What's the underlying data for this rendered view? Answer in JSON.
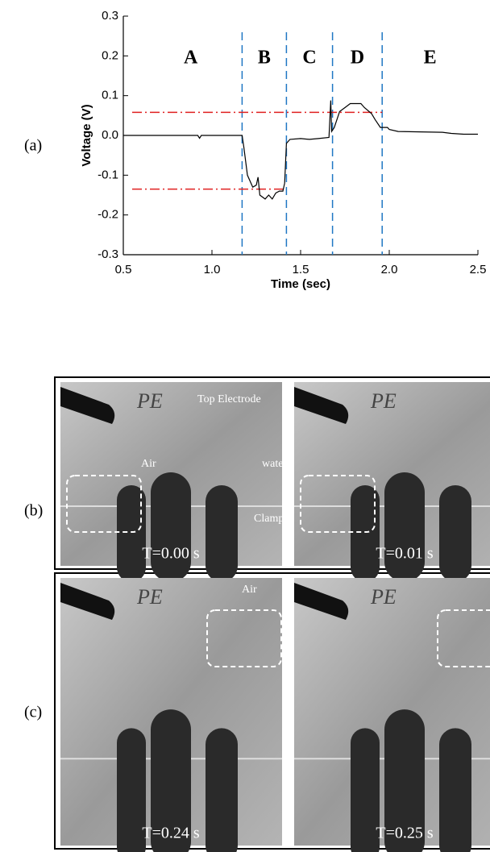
{
  "chart_data": {
    "type": "line",
    "xlabel": "Time (sec)",
    "ylabel": "Voltage (V)",
    "xlim": [
      0.5,
      2.5
    ],
    "ylim": [
      -0.3,
      0.3
    ],
    "xticks": [
      0.5,
      {
        "value": 1,
        "label": "1.0"
      },
      1.5,
      {
        "value": 2,
        "label": "2.0"
      },
      2.5
    ],
    "yticks": [
      -0.3,
      -0.2,
      -0.1,
      {
        "value": 0,
        "label": "0.0"
      },
      0.1,
      0.2,
      0.3
    ],
    "color": "#000000",
    "x": [
      0.5,
      0.92,
      0.93,
      0.94,
      1.17,
      1.18,
      1.2,
      1.23,
      1.25,
      1.26,
      1.27,
      1.3,
      1.32,
      1.34,
      1.36,
      1.38,
      1.4,
      1.41,
      1.42,
      1.44,
      1.5,
      1.55,
      1.6,
      1.66,
      1.67,
      1.675,
      1.69,
      1.72,
      1.75,
      1.78,
      1.84,
      1.86,
      1.9,
      1.92,
      1.95,
      1.99,
      2.0,
      2.05,
      2.3,
      2.35,
      2.42,
      2.5
    ],
    "values": [
      0,
      0,
      -0.007,
      0,
      0,
      -0.03,
      -0.1,
      -0.13,
      -0.125,
      -0.105,
      -0.15,
      -0.16,
      -0.15,
      -0.16,
      -0.145,
      -0.14,
      -0.14,
      -0.12,
      -0.02,
      -0.01,
      -0.008,
      -0.01,
      -0.008,
      -0.005,
      0.088,
      0.01,
      0.02,
      0.06,
      0.07,
      0.08,
      0.08,
      0.07,
      0.055,
      0.04,
      0.02,
      0.02,
      0.015,
      0.01,
      0.008,
      0.005,
      0.003,
      0.003
    ],
    "region_labels": [
      "A",
      "B",
      "C",
      "D",
      "E"
    ],
    "region_boundaries": [
      1.17,
      1.42,
      1.68,
      1.96
    ],
    "boundary_color": "#1f77c4",
    "reference_lines": [
      {
        "value": 0.058,
        "x": [
          0.55,
          1.96
        ]
      },
      {
        "value": -0.135,
        "x": [
          0.55,
          1.42
        ]
      }
    ],
    "reference_color": "#e02020"
  },
  "panel_labels": [
    "(a)",
    "(b)",
    "(c)"
  ],
  "sample_marking": "PE",
  "photos": [
    {
      "time_label": "T=0.00 s",
      "annotations": [
        "Top Electrode",
        "Air",
        "water",
        "Clamp"
      ]
    },
    {
      "time_label": "T=0.01 s"
    },
    {
      "time_label": "T=0.24 s",
      "annotations": [
        "Air"
      ]
    },
    {
      "time_label": "T=0.25 s"
    }
  ]
}
